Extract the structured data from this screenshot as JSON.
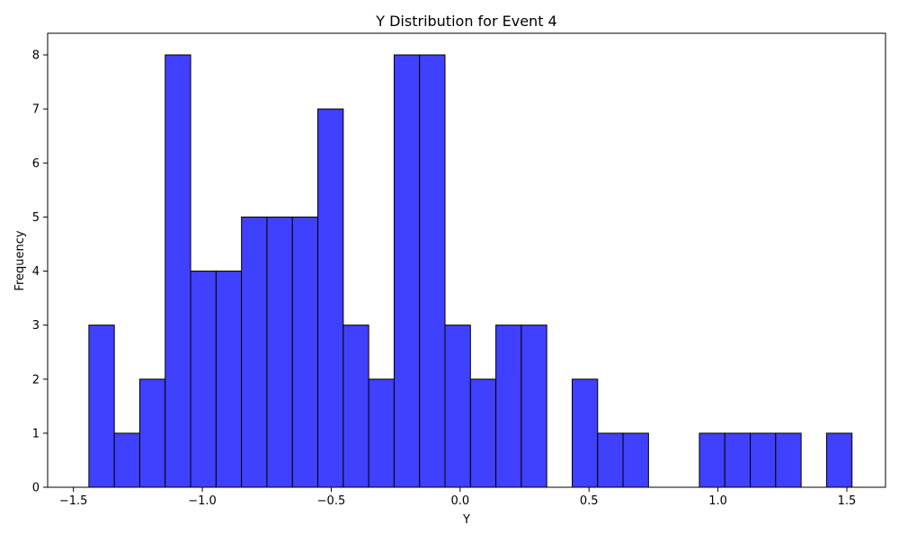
{
  "chart_data": {
    "type": "bar",
    "title": "Y Distribution for Event 4",
    "xlabel": "Y",
    "ylabel": "Frequency",
    "xlim": [
      -1.6,
      1.65
    ],
    "ylim": [
      0,
      8.4
    ],
    "xticks": [
      -1.5,
      -1.0,
      -0.5,
      0.0,
      0.5,
      1.0,
      1.5
    ],
    "xtick_labels": [
      "−1.5",
      "−1.0",
      "−0.5",
      "0.0",
      "0.5",
      "1.0",
      "1.5"
    ],
    "yticks": [
      0,
      1,
      2,
      3,
      4,
      5,
      6,
      7,
      8
    ],
    "ytick_labels": [
      "0",
      "1",
      "2",
      "3",
      "4",
      "5",
      "6",
      "7",
      "8"
    ],
    "bin_range": [
      -1.44,
      1.52
    ],
    "bins": 30,
    "values": [
      3,
      1,
      2,
      8,
      4,
      4,
      5,
      5,
      5,
      7,
      3,
      2,
      8,
      8,
      3,
      2,
      3,
      3,
      0,
      2,
      1,
      1,
      0,
      0,
      1,
      1,
      1,
      1,
      0,
      1
    ],
    "bar_color": "#4040ff",
    "edge_color": "#000000",
    "grid": false,
    "legend": "none"
  }
}
